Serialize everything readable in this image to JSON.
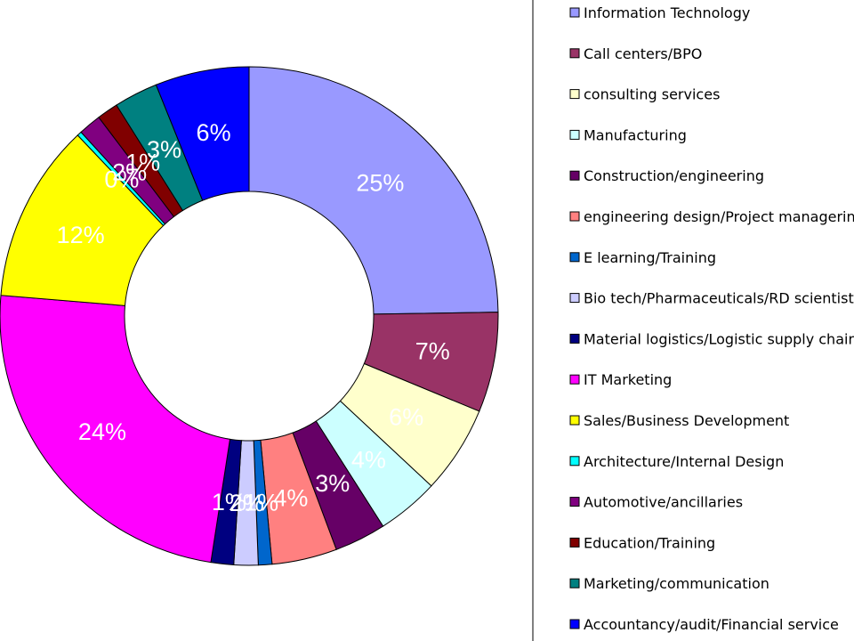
{
  "chart_data": {
    "type": "pie",
    "donut": true,
    "legend_position": "right",
    "categories": [
      "Information Technology",
      "Call centers/BPO",
      "consulting services",
      "Manufacturing",
      "Construction/engineering",
      "engineering design/Project managering",
      "E learning/Training",
      "Bio tech/Pharmaceuticals/RD scientist",
      "Material logistics/Logistic supply chain",
      "IT Marketing",
      "Sales/Business Development",
      "Architecture/Internal Design",
      "Automotive/ancillaries",
      "Education/Training",
      "Marketing/communication",
      "Accountancy/audit/Financial service"
    ],
    "values": [
      25.2,
      6.6,
      5.8,
      4.1,
      3.4,
      4.3,
      0.9,
      1.6,
      1.5,
      24.3,
      11.8,
      0.3,
      1.5,
      1.4,
      2.9,
      6.2
    ],
    "data_labels": [
      "25%",
      "7%",
      "6%",
      "4%",
      "3%",
      "4%",
      "1%",
      "2%",
      "1%",
      "24%",
      "12%",
      "0%",
      "2%",
      "1%",
      "3%",
      "6%"
    ],
    "colors": [
      "#9999FF",
      "#993366",
      "#FFFFCC",
      "#CCFFFF",
      "#660066",
      "#FF8080",
      "#0066CC",
      "#CCCCFF",
      "#000080",
      "#FF00FF",
      "#FFFF00",
      "#00FFFF",
      "#800080",
      "#800000",
      "#008080",
      "#0000FF"
    ]
  }
}
